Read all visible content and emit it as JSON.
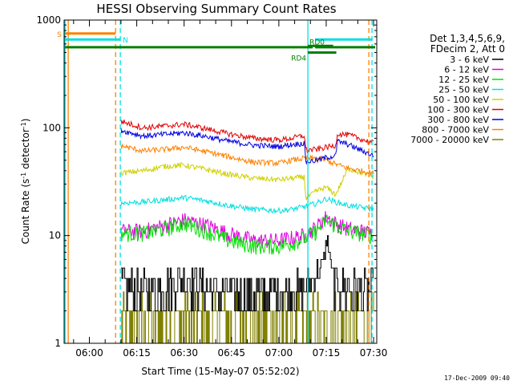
{
  "chart_data": {
    "type": "line",
    "title": "HESSI Observing Summary Count Rates",
    "xlabel": "Start Time (15-May-07 05:52:02)",
    "ylabel": "Count Rate (s",
    "ylabel_sup1": "-1",
    "ylabel_mid": " detector",
    "ylabel_sup2": "-1",
    "ylabel_end": ")",
    "timestamp": "17-Dec-2009 09:40",
    "x_scale": "time (minutes after 05:52:02)",
    "xlim": [
      0,
      99
    ],
    "ylim": [
      1,
      1000
    ],
    "y_scale": "log",
    "x_ticks": [
      {
        "t": 8,
        "label": "06:00"
      },
      {
        "t": 23,
        "label": "06:15"
      },
      {
        "t": 38,
        "label": "06:30"
      },
      {
        "t": 53,
        "label": "06:45"
      },
      {
        "t": 68,
        "label": "07:00"
      },
      {
        "t": 83,
        "label": "07:15"
      },
      {
        "t": 98,
        "label": "07:30"
      }
    ],
    "y_ticks": [
      {
        "v": 1,
        "label": "1"
      },
      {
        "v": 10,
        "label": "10"
      },
      {
        "v": 100,
        "label": "100"
      },
      {
        "v": 1000,
        "label": "1000"
      }
    ],
    "legend": {
      "placement": "top-right",
      "header": [
        "Det 1,3,4,5,6,9,",
        "FDecim 2, Att 0"
      ],
      "entries": [
        {
          "label": "3 - 6 keV",
          "color": "#000000"
        },
        {
          "label": "6 - 12 keV",
          "color": "#e000e0"
        },
        {
          "label": "12 - 25 keV",
          "color": "#00e000"
        },
        {
          "label": "25 - 50 keV",
          "color": "#00e0e0"
        },
        {
          "label": "50 - 100 keV",
          "color": "#d0d000"
        },
        {
          "label": "100 - 300 keV",
          "color": "#e00000"
        },
        {
          "label": "300 - 800 keV",
          "color": "#0000e0"
        },
        {
          "label": "800 - 7000 keV",
          "color": "#ff8000"
        },
        {
          "label": "7000 - 20000 keV",
          "color": "#808000"
        }
      ]
    },
    "flag_bars": [
      {
        "label": "S",
        "color": "#ff8000",
        "y": 750,
        "segments": [
          [
            0.3,
            16.3
          ]
        ]
      },
      {
        "label": "N",
        "color": "#00e0e0",
        "y": 660,
        "segments": [
          [
            0.3,
            17.8
          ],
          [
            79.5,
            97.5
          ]
        ]
      },
      {
        "label": "",
        "color": "#008000",
        "y": 560,
        "segments": [
          [
            0.3,
            78.7
          ],
          [
            79.5,
            98.5
          ]
        ]
      },
      {
        "label": "RD0",
        "color": "#008000",
        "y": 575,
        "segments": [
          [
            77.2,
            85.2
          ]
        ]
      },
      {
        "label": "RD4",
        "color": "#008000",
        "y": 500,
        "segments": [
          [
            77.2,
            86.2
          ]
        ]
      }
    ],
    "vertical_lines": [
      {
        "t": 0.3,
        "color": "#00e0e0",
        "style": "solid"
      },
      {
        "t": 1.3,
        "color": "#ff8000",
        "style": "solid"
      },
      {
        "t": 16.3,
        "color": "#ff8000",
        "style": "dashed"
      },
      {
        "t": 17.8,
        "color": "#00e0e0",
        "style": "dashed"
      },
      {
        "t": 77.2,
        "color": "#00e0e0",
        "style": "solid"
      },
      {
        "t": 96.5,
        "color": "#ff8000",
        "style": "dashed"
      },
      {
        "t": 97.5,
        "color": "#00e0e0",
        "style": "dashed"
      }
    ],
    "t_start": 18,
    "t_end": 98,
    "series": [
      {
        "name": "3 - 6 keV",
        "color": "#000000",
        "kind": "noisy-step",
        "t": [
          18,
          25,
          32,
          38,
          45,
          52,
          60,
          68,
          72,
          76,
          80,
          83,
          86,
          90,
          98
        ],
        "v": [
          3.6,
          3.0,
          3.4,
          4.2,
          3.2,
          2.9,
          2.8,
          2.9,
          3.0,
          3.3,
          4.6,
          5.6,
          3.7,
          3.2,
          3.0
        ]
      },
      {
        "name": "6 - 12 keV",
        "color": "#e000e0",
        "kind": "line",
        "t": [
          18,
          25,
          32,
          38,
          45,
          52,
          60,
          68,
          72,
          76,
          80,
          83,
          86,
          90,
          98
        ],
        "v": [
          11.0,
          11.0,
          12.5,
          14.0,
          12.5,
          10.5,
          9.0,
          9.0,
          9.5,
          10.0,
          12.0,
          15.0,
          13.0,
          11.5,
          10.5
        ]
      },
      {
        "name": "12 - 25 keV",
        "color": "#00e000",
        "kind": "line",
        "t": [
          18,
          25,
          32,
          38,
          45,
          52,
          60,
          68,
          72,
          76,
          80,
          83,
          86,
          90,
          98
        ],
        "v": [
          10.5,
          10.5,
          11.5,
          13.0,
          11.0,
          9.0,
          8.0,
          8.0,
          8.5,
          9.5,
          11.0,
          14.0,
          12.5,
          11.0,
          10.0
        ]
      },
      {
        "name": "25 - 50 keV",
        "color": "#00e0e0",
        "kind": "line",
        "t": [
          18,
          25,
          32,
          38,
          45,
          52,
          60,
          68,
          72,
          76,
          80,
          83,
          86,
          90,
          98
        ],
        "v": [
          20.0,
          20.5,
          21.5,
          22.5,
          21.0,
          19.0,
          17.5,
          17.0,
          17.5,
          18.5,
          20.0,
          22.0,
          20.5,
          19.0,
          17.5
        ]
      },
      {
        "name": "50 - 100 keV",
        "color": "#d0d000",
        "kind": "line",
        "t": [
          18,
          25,
          32,
          38,
          45,
          52,
          60,
          68,
          72,
          76,
          76.6,
          80,
          83,
          86,
          90,
          98
        ],
        "v": [
          38.0,
          40.0,
          44.0,
          45.0,
          41.0,
          37.0,
          34.0,
          33.0,
          34.0,
          35.0,
          22.0,
          26.0,
          28.0,
          24.0,
          42.0,
          35.0
        ]
      },
      {
        "name": "100 - 300 keV",
        "color": "#e00000",
        "kind": "line",
        "t": [
          18,
          25,
          32,
          38,
          45,
          52,
          60,
          68,
          72,
          76,
          76.6,
          80,
          83,
          86,
          86.5,
          90,
          98
        ],
        "v": [
          115,
          100,
          104,
          108,
          98,
          88,
          80,
          77,
          80,
          85,
          62,
          63,
          66,
          68,
          88,
          86,
          72
        ]
      },
      {
        "name": "300 - 800 keV",
        "color": "#0000e0",
        "kind": "line",
        "t": [
          18,
          25,
          32,
          38,
          45,
          52,
          60,
          68,
          72,
          76,
          76.6,
          80,
          83,
          86,
          86.5,
          90,
          98
        ],
        "v": [
          95,
          84,
          87,
          90,
          83,
          75,
          69,
          67,
          70,
          72,
          48,
          50,
          53,
          55,
          75,
          70,
          55
        ]
      },
      {
        "name": "800 - 7000 keV",
        "color": "#ff8000",
        "kind": "line",
        "t": [
          18,
          25,
          32,
          38,
          45,
          52,
          60,
          68,
          72,
          76,
          80,
          83,
          86,
          90,
          98
        ],
        "v": [
          68,
          61,
          63,
          66,
          60,
          54,
          48,
          47,
          50,
          52,
          52,
          50,
          46,
          42,
          38
        ]
      },
      {
        "name": "7000 - 20000 keV",
        "color": "#808000",
        "kind": "binary-noise",
        "t": [
          18,
          98
        ],
        "v": [
          1.9,
          2.7
        ]
      }
    ]
  }
}
